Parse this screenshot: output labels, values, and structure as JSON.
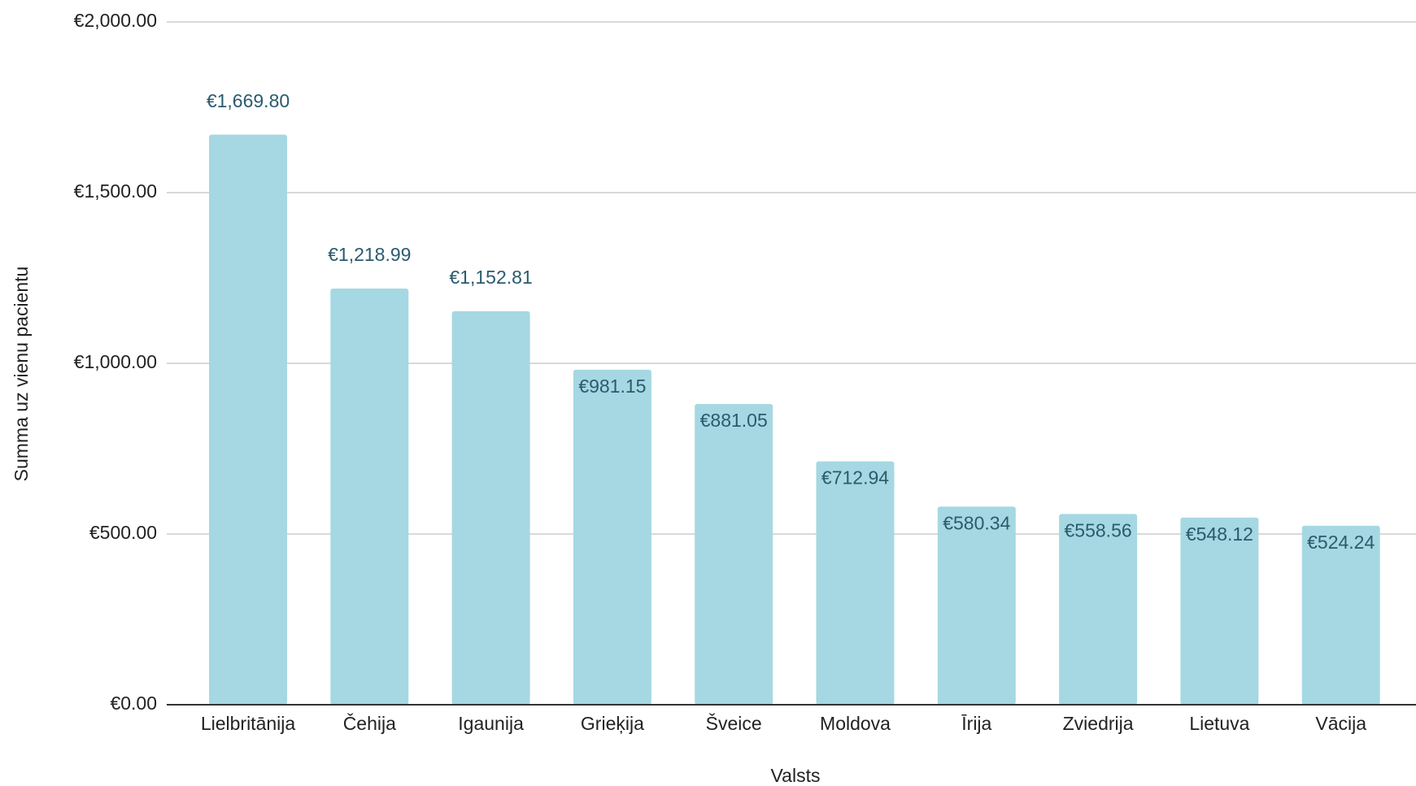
{
  "chart_data": {
    "type": "bar",
    "x_label": "Valsts",
    "y_label": "Summa uz vienu pacientu",
    "categories": [
      "Lielbritānija",
      "Čehija",
      "Igaunija",
      "Grieķija",
      "Šveice",
      "Moldova",
      "Īrija",
      "Zviedrija",
      "Lietuva",
      "Vācija"
    ],
    "values": [
      1669.8,
      1218.99,
      1152.81,
      981.15,
      881.05,
      712.94,
      580.34,
      558.56,
      548.12,
      524.24
    ],
    "value_labels": [
      "€1,669.80",
      "€1,218.99",
      "€1,152.81",
      "€981.15",
      "€881.05",
      "€712.94",
      "€580.34",
      "€558.56",
      "€548.12",
      "€524.24"
    ],
    "color": "#a5d8e2",
    "ylim": [
      0,
      2000
    ],
    "yticks": [
      {
        "value": 0,
        "label": "€0.00"
      },
      {
        "value": 500,
        "label": "€500.00"
      },
      {
        "value": 1000,
        "label": "€1,000.00"
      },
      {
        "value": 1500,
        "label": "€1,500.00"
      },
      {
        "value": 2000,
        "label": "€2,000.00"
      }
    ],
    "grid": true
  }
}
